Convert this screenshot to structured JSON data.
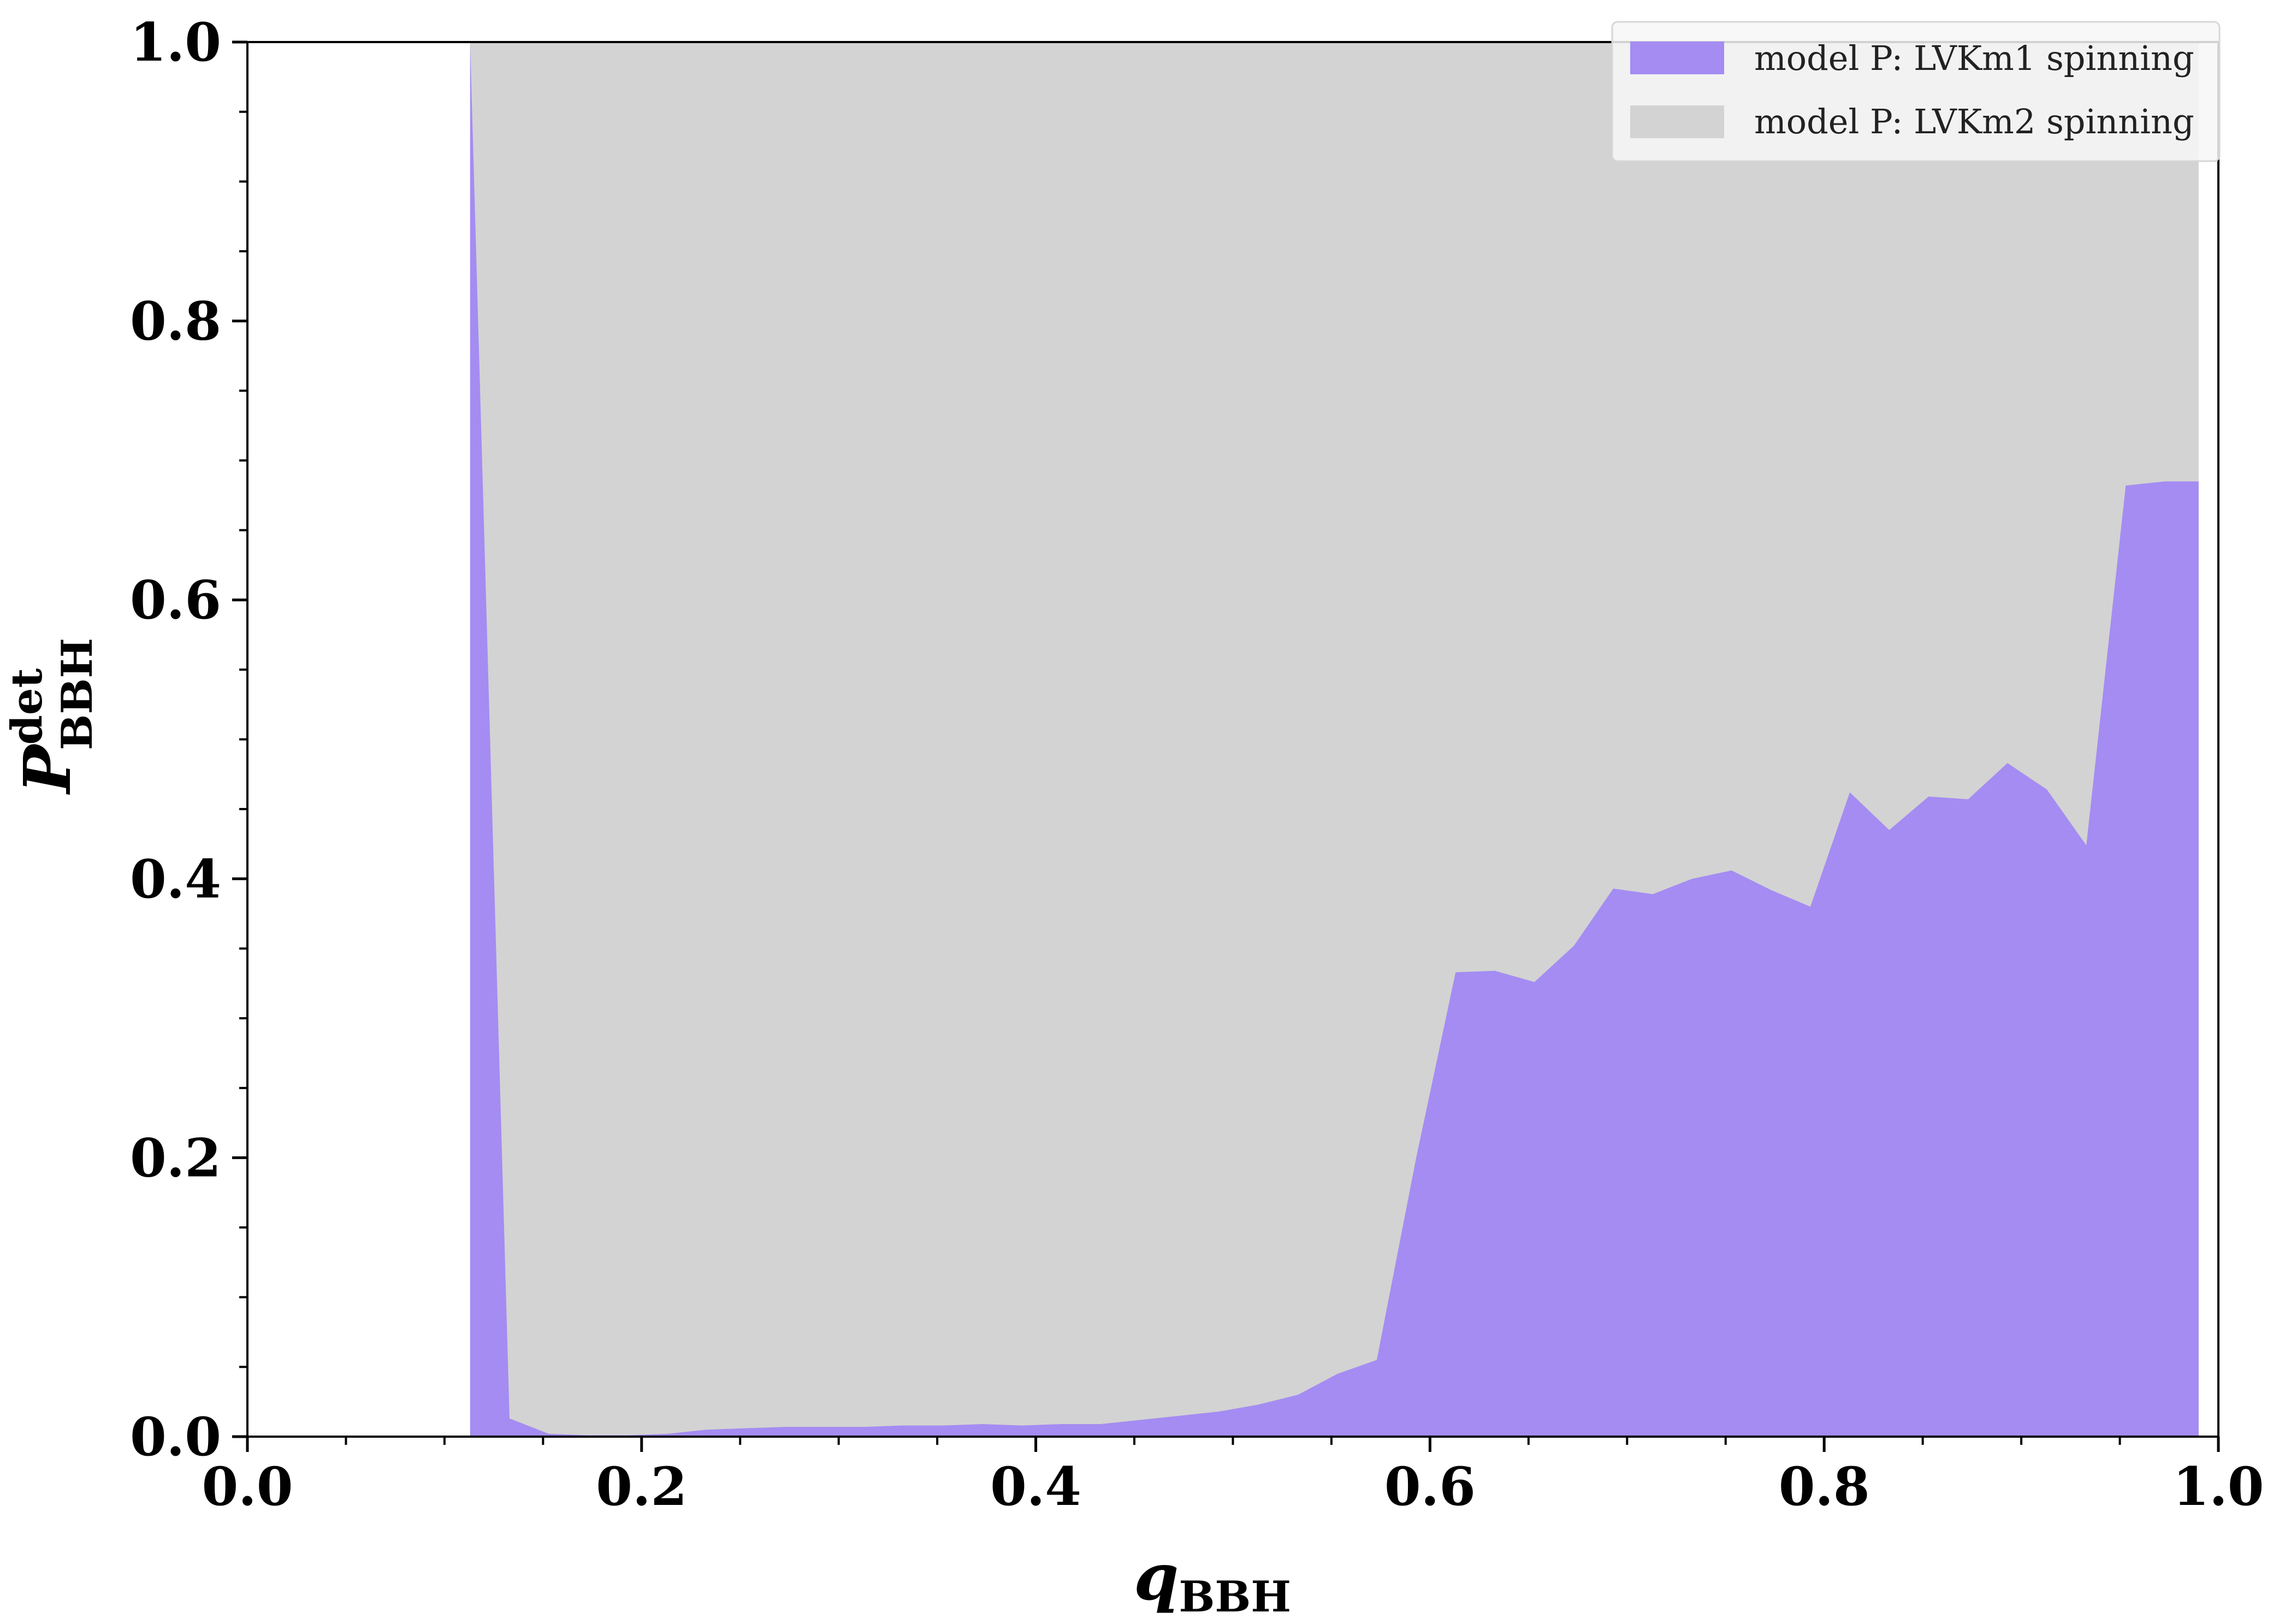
{
  "chart_data": {
    "type": "area",
    "title": "",
    "xlabel": {
      "main": "q",
      "sub": "BBH"
    },
    "ylabel": {
      "main": "P",
      "sup": "det",
      "sub": "BBH"
    },
    "xlim": [
      0.0,
      1.0
    ],
    "ylim": [
      0.0,
      1.0
    ],
    "xticks": [
      0.0,
      0.2,
      0.4,
      0.6,
      0.8,
      1.0
    ],
    "yticks": [
      0.0,
      0.2,
      0.4,
      0.6,
      0.8,
      1.0
    ],
    "xtick_labels": [
      "0.0",
      "0.2",
      "0.4",
      "0.6",
      "0.8",
      "1.0"
    ],
    "ytick_labels": [
      "0.0",
      "0.2",
      "0.4",
      "0.6",
      "0.8",
      "1.0"
    ],
    "grid": false,
    "legend_position": "top-right",
    "series": [
      {
        "name": "model P: LVKm2 spinning",
        "color": "#d3d3d3",
        "stacked_on_top": true,
        "x": [
          0.113,
          0.99
        ],
        "values": [
          1.0,
          1.0
        ]
      },
      {
        "name": "model P: LVKm1 spinning",
        "color": "#a48cf2",
        "x": [
          0.113,
          0.133,
          0.153,
          0.173,
          0.193,
          0.213,
          0.233,
          0.253,
          0.273,
          0.293,
          0.313,
          0.333,
          0.353,
          0.373,
          0.393,
          0.413,
          0.433,
          0.453,
          0.473,
          0.493,
          0.513,
          0.533,
          0.553,
          0.573,
          0.593,
          0.613,
          0.633,
          0.653,
          0.673,
          0.693,
          0.713,
          0.733,
          0.753,
          0.773,
          0.793,
          0.813,
          0.833,
          0.853,
          0.873,
          0.893,
          0.913,
          0.933,
          0.953,
          0.973,
          0.99
        ],
        "values": [
          1.0,
          0.013,
          0.002,
          0.001,
          0.001,
          0.002,
          0.005,
          0.006,
          0.007,
          0.007,
          0.007,
          0.008,
          0.008,
          0.009,
          0.008,
          0.009,
          0.009,
          0.012,
          0.015,
          0.018,
          0.023,
          0.03,
          0.045,
          0.055,
          0.2,
          0.333,
          0.334,
          0.326,
          0.352,
          0.393,
          0.389,
          0.4,
          0.406,
          0.392,
          0.38,
          0.462,
          0.435,
          0.459,
          0.457,
          0.483,
          0.464,
          0.424,
          0.682,
          0.685,
          0.685
        ]
      }
    ]
  }
}
